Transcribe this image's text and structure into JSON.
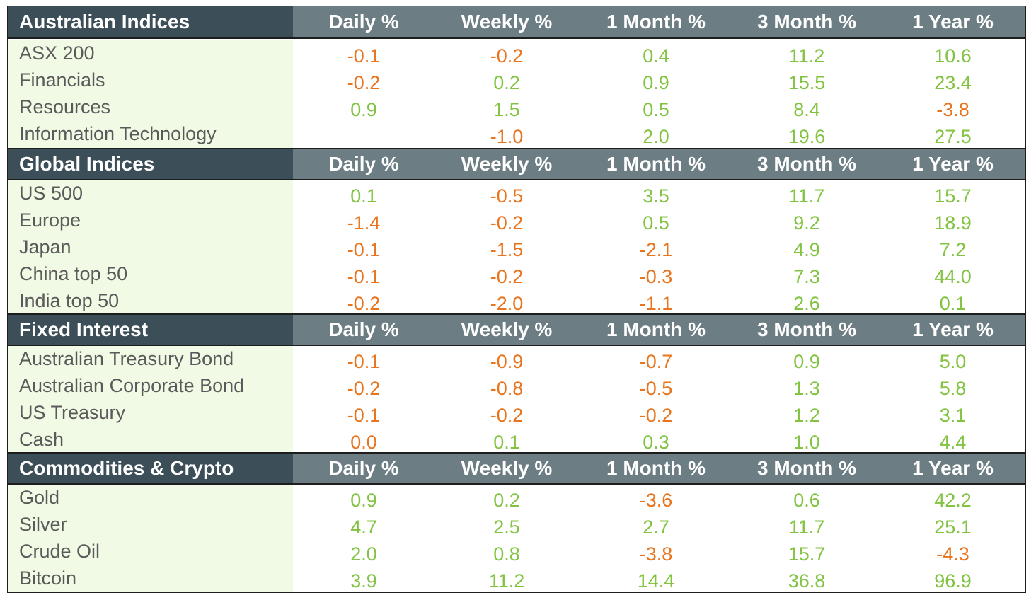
{
  "columns": [
    "Daily %",
    "Weekly %",
    "1 Month %",
    "3 Month %",
    "1 Year %"
  ],
  "colors": {
    "positive": "#82c341",
    "negative": "#e8741d",
    "header_dark": "#3c4e57",
    "header_mid": "#6c7d83",
    "label_bg": "#f1fae4"
  },
  "sections": [
    {
      "title": "Australian Indices",
      "rows": [
        {
          "name": "ASX 200",
          "values": [
            "-0.1",
            "-0.2",
            "0.4",
            "11.2",
            "10.6"
          ]
        },
        {
          "name": "Financials",
          "values": [
            "-0.2",
            "0.2",
            "0.9",
            "15.5",
            "23.4"
          ]
        },
        {
          "name": "Resources",
          "values": [
            "0.9",
            "1.5",
            "0.5",
            "8.4",
            "-3.8"
          ]
        },
        {
          "name": "Information Technology",
          "values": [
            "",
            "-1.0",
            "2.0",
            "19.6",
            "27.5"
          ]
        }
      ]
    },
    {
      "title": "Global Indices",
      "rows": [
        {
          "name": "US 500",
          "values": [
            "0.1",
            "-0.5",
            "3.5",
            "11.7",
            "15.7"
          ]
        },
        {
          "name": "Europe",
          "values": [
            "-1.4",
            "-0.2",
            "0.5",
            "9.2",
            "18.9"
          ]
        },
        {
          "name": "Japan",
          "values": [
            "-0.1",
            "-1.5",
            "-2.1",
            "4.9",
            "7.2"
          ]
        },
        {
          "name": "China top 50",
          "values": [
            "-0.1",
            "-0.2",
            "-0.3",
            "7.3",
            "44.0"
          ]
        },
        {
          "name": "India top 50",
          "values": [
            "-0.2",
            "-2.0",
            "-1.1",
            "2.6",
            "0.1"
          ]
        }
      ]
    },
    {
      "title": "Fixed Interest",
      "rows": [
        {
          "name": "Australian Treasury Bond",
          "values": [
            "-0.1",
            "-0.9",
            "-0.7",
            "0.9",
            "5.0"
          ]
        },
        {
          "name": "Australian Corporate Bond",
          "values": [
            "-0.2",
            "-0.8",
            "-0.5",
            "1.3",
            "5.8"
          ]
        },
        {
          "name": "US Treasury",
          "values": [
            "-0.1",
            "-0.2",
            "-0.2",
            "1.2",
            "3.1"
          ]
        },
        {
          "name": "Cash",
          "values": [
            "0.0",
            "0.1",
            "0.3",
            "1.0",
            "4.4"
          ]
        }
      ]
    },
    {
      "title": "Commodities & Crypto",
      "rows": [
        {
          "name": "Gold",
          "values": [
            "0.9",
            "0.2",
            "-3.6",
            "0.6",
            "42.2"
          ]
        },
        {
          "name": "Silver",
          "values": [
            "4.7",
            "2.5",
            "2.7",
            "11.7",
            "25.1"
          ]
        },
        {
          "name": "Crude Oil",
          "values": [
            "2.0",
            "0.8",
            "-3.8",
            "15.7",
            "-4.3"
          ]
        },
        {
          "name": "Bitcoin",
          "values": [
            "3.9",
            "11.2",
            "14.4",
            "36.8",
            "96.9"
          ]
        }
      ]
    }
  ]
}
